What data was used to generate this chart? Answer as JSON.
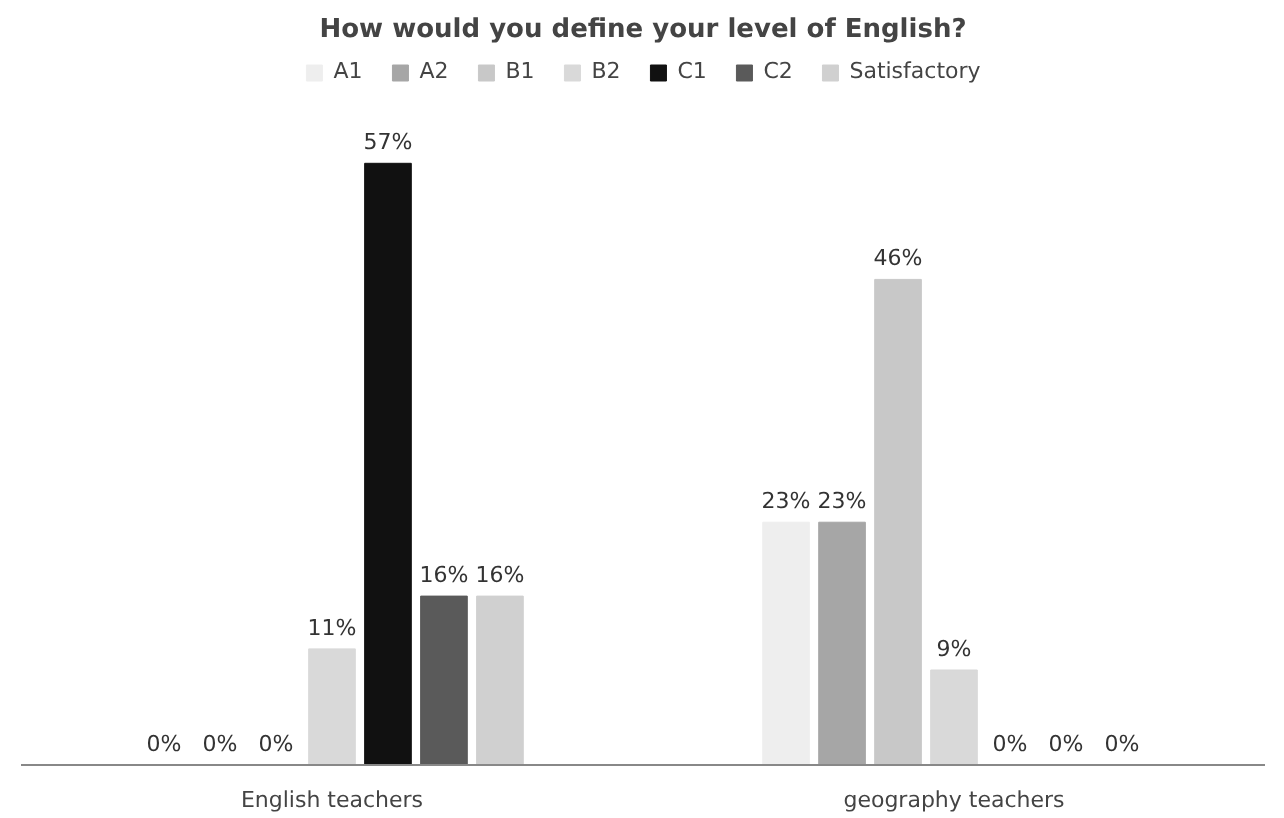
{
  "chart_data": {
    "type": "bar",
    "title": "How would you define your level of English?",
    "categories": [
      "English teachers",
      "geography teachers"
    ],
    "series": [
      {
        "name": "A1",
        "color": "#eeeeee",
        "values": [
          0,
          23
        ],
        "value_labels": [
          "0%",
          "23%"
        ]
      },
      {
        "name": "A2",
        "color": "#a6a6a6",
        "values": [
          0,
          23
        ],
        "value_labels": [
          "0%",
          "23%"
        ]
      },
      {
        "name": "B1",
        "color": "#c8c8c8",
        "values": [
          0,
          46
        ],
        "value_labels": [
          "0%",
          "46%"
        ]
      },
      {
        "name": "B2",
        "color": "#d9d9d9",
        "values": [
          11,
          9
        ],
        "value_labels": [
          "11%",
          "9%"
        ]
      },
      {
        "name": "C1",
        "color": "#111111",
        "values": [
          57,
          0
        ],
        "value_labels": [
          "57%",
          "0%"
        ]
      },
      {
        "name": "C2",
        "color": "#5a5a5a",
        "values": [
          16,
          0
        ],
        "value_labels": [
          "16%",
          "0%"
        ]
      },
      {
        "name": "Satisfactory",
        "color": "#d0d0d0",
        "values": [
          16,
          0
        ],
        "value_labels": [
          "16%",
          "0%"
        ]
      }
    ],
    "legend": "top",
    "grid": false,
    "tick_labels": "x"
  }
}
